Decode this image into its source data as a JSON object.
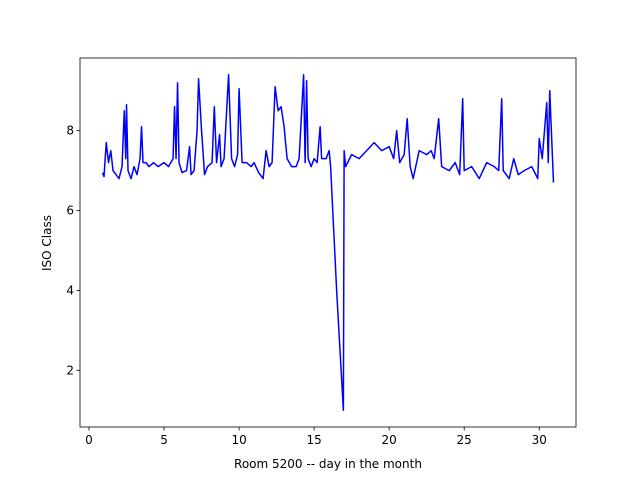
{
  "chart_data": {
    "type": "line",
    "xlabel": "Room 5200 -- day in the month",
    "ylabel": "ISO Class",
    "color": "#0000ff",
    "x": [
      0.9,
      1.0,
      1.15,
      1.3,
      1.45,
      1.6,
      1.8,
      2.0,
      2.2,
      2.35,
      2.45,
      2.5,
      2.6,
      2.8,
      3.0,
      3.2,
      3.4,
      3.5,
      3.6,
      3.8,
      4.0,
      4.3,
      4.6,
      5.0,
      5.3,
      5.6,
      5.7,
      5.8,
      5.9,
      6.0,
      6.2,
      6.5,
      6.7,
      6.8,
      7.0,
      7.2,
      7.3,
      7.5,
      7.7,
      7.9,
      8.2,
      8.35,
      8.5,
      8.7,
      8.8,
      9.0,
      9.3,
      9.5,
      9.7,
      9.9,
      10.0,
      10.2,
      10.5,
      10.8,
      11.0,
      11.3,
      11.6,
      11.8,
      12.0,
      12.2,
      12.4,
      12.6,
      12.8,
      13.0,
      13.2,
      13.5,
      13.8,
      14.0,
      14.3,
      14.4,
      14.5,
      14.6,
      14.8,
      15.0,
      15.2,
      15.4,
      15.5,
      15.8,
      16.0,
      16.1,
      16.5,
      16.8,
      16.95,
      17.0,
      17.1,
      17.5,
      18.0,
      18.5,
      19.0,
      19.5,
      20.0,
      20.3,
      20.5,
      20.7,
      21.0,
      21.2,
      21.4,
      21.6,
      22.0,
      22.5,
      22.8,
      23.0,
      23.3,
      23.5,
      24.0,
      24.4,
      24.7,
      24.9,
      25.0,
      25.5,
      26.0,
      26.5,
      27.0,
      27.3,
      27.5,
      27.6,
      28.0,
      28.3,
      28.6,
      29.0,
      29.5,
      29.9,
      30.0,
      30.2,
      30.5,
      30.6,
      30.7,
      30.95
    ],
    "values": [
      6.95,
      6.85,
      7.7,
      7.2,
      7.5,
      7.0,
      6.9,
      6.8,
      7.1,
      8.5,
      7.3,
      8.65,
      7.0,
      6.8,
      7.1,
      6.9,
      7.3,
      8.1,
      7.2,
      7.2,
      7.1,
      7.2,
      7.1,
      7.2,
      7.1,
      7.3,
      8.6,
      7.3,
      9.2,
      7.2,
      6.95,
      7.0,
      7.6,
      6.9,
      7.0,
      8.0,
      9.3,
      8.0,
      6.9,
      7.1,
      7.2,
      8.6,
      7.2,
      7.9,
      7.1,
      7.3,
      9.4,
      7.3,
      7.1,
      7.4,
      9.05,
      7.2,
      7.2,
      7.1,
      7.2,
      6.95,
      6.8,
      7.5,
      7.1,
      7.2,
      9.1,
      8.5,
      8.6,
      8.1,
      7.3,
      7.1,
      7.1,
      7.3,
      9.4,
      7.2,
      9.25,
      7.3,
      7.1,
      7.3,
      7.2,
      8.1,
      7.3,
      7.3,
      7.5,
      7.1,
      4.0,
      2.0,
      1.0,
      7.5,
      7.1,
      7.4,
      7.3,
      7.5,
      7.7,
      7.5,
      7.6,
      7.3,
      8.0,
      7.2,
      7.4,
      8.3,
      7.1,
      6.8,
      7.5,
      7.4,
      7.5,
      7.3,
      8.3,
      7.1,
      7.0,
      7.2,
      6.9,
      8.8,
      7.0,
      7.1,
      6.8,
      7.2,
      7.1,
      7.0,
      8.8,
      7.0,
      6.8,
      7.3,
      6.9,
      7.0,
      7.1,
      6.8,
      7.8,
      7.3,
      8.7,
      7.2,
      9.0,
      6.7
    ],
    "xlim": [
      -0.6,
      32.45
    ],
    "ylim": [
      0.58,
      9.82
    ],
    "xticks": [
      0,
      5,
      10,
      15,
      20,
      25,
      30
    ],
    "yticks": [
      2,
      4,
      6,
      8
    ]
  }
}
